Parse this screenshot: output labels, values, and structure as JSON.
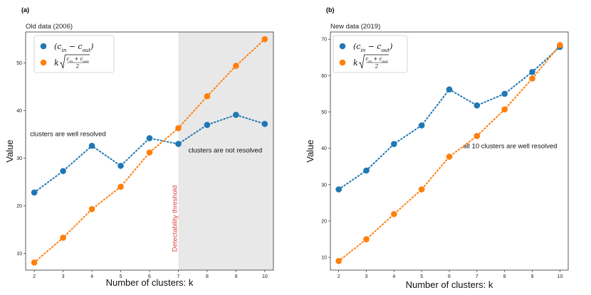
{
  "chart_data": [
    {
      "type": "line",
      "panel_label": "(a)",
      "title": "Old data (2006)",
      "xlabel": "Number of clusters: k",
      "ylabel": "Value",
      "xlim": [
        1.7,
        10.3
      ],
      "ylim": [
        6.5,
        56.5
      ],
      "xticks": [
        2,
        3,
        4,
        5,
        6,
        7,
        8,
        9,
        10
      ],
      "yticks": [
        10,
        20,
        30,
        40,
        50
      ],
      "shaded_region": {
        "from": 7,
        "to": 10.3,
        "color": "#e8e8e8"
      },
      "threshold_label": "Detectability threshold",
      "annotations": [
        {
          "text": "clusters are well resolved",
          "x": 1.85,
          "y": 34.6,
          "anchor": "start"
        },
        {
          "text": "clusters are not resolved",
          "x": 7.35,
          "y": 31.2,
          "anchor": "start"
        }
      ],
      "legend_position": "top-left",
      "series": [
        {
          "name": "(c_in − c_out)",
          "color": "#1f77b4",
          "x": [
            2,
            3,
            4,
            5,
            6,
            7,
            8,
            9,
            10
          ],
          "values": [
            22.8,
            27.3,
            32.6,
            28.4,
            34.2,
            33.0,
            37.0,
            39.1,
            37.2
          ]
        },
        {
          "name": "k√((c_in + c_out)/2)",
          "color": "#ff7f0e",
          "x": [
            2,
            3,
            4,
            5,
            6,
            7,
            8,
            9,
            10
          ],
          "values": [
            8.1,
            13.3,
            19.3,
            24.0,
            31.2,
            36.3,
            43.0,
            49.4,
            55.0
          ]
        }
      ]
    },
    {
      "type": "line",
      "panel_label": "(b)",
      "title": "New data (2019)",
      "xlabel": "Number of clusters: k",
      "ylabel": "Value",
      "xlim": [
        1.7,
        10.3
      ],
      "ylim": [
        6.5,
        72
      ],
      "xticks": [
        2,
        3,
        4,
        5,
        6,
        7,
        8,
        9,
        10
      ],
      "yticks": [
        10,
        20,
        30,
        40,
        50,
        60,
        70
      ],
      "annotations": [
        {
          "text": "all 10 clusters are well resolved",
          "x": 6.5,
          "y": 40,
          "anchor": "start"
        }
      ],
      "legend_position": "top-left",
      "series": [
        {
          "name": "(c_in − c_out)",
          "color": "#1f77b4",
          "x": [
            2,
            3,
            4,
            5,
            6,
            7,
            8,
            9,
            10
          ],
          "values": [
            28.7,
            33.9,
            41.2,
            46.3,
            56.2,
            51.8,
            55.0,
            61.0,
            67.9
          ]
        },
        {
          "name": "k√((c_in + c_out)/2)",
          "color": "#ff7f0e",
          "x": [
            2,
            3,
            4,
            5,
            6,
            7,
            8,
            9,
            10
          ],
          "values": [
            9.0,
            15.0,
            21.9,
            28.7,
            37.7,
            43.4,
            50.7,
            59.2,
            68.4
          ]
        }
      ]
    }
  ]
}
